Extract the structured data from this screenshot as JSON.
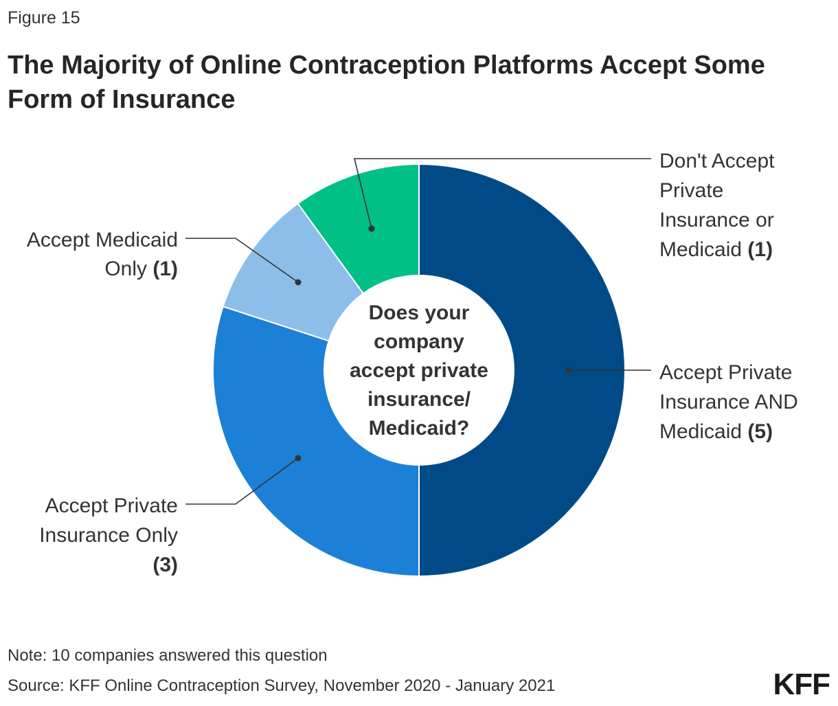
{
  "figure_label": "Figure 15",
  "title": "The Majority of Online Contraception Platforms Accept Some Form of Insurance",
  "note": "Note: 10 companies answered this question",
  "source": "Source: KFF Online Contraception Survey, November 2020 - January 2021",
  "logo": "KFF",
  "chart_data": {
    "type": "pie",
    "subtype": "donut",
    "center_label": [
      "Does your",
      "company",
      "accept private",
      "insurance/",
      "Medicaid?"
    ],
    "slices": [
      {
        "label_lines": [
          "Accept Private",
          "Insurance AND",
          "Medicaid"
        ],
        "value": 5,
        "value_label": "(5)",
        "color": "#004B87"
      },
      {
        "label_lines": [
          "Accept Private",
          "Insurance Only"
        ],
        "value": 3,
        "value_label": "(3)",
        "color": "#1C80D6"
      },
      {
        "label_lines": [
          "Accept Medicaid",
          "Only"
        ],
        "value": 1,
        "value_label": "(1)",
        "color": "#8DBEE9"
      },
      {
        "label_lines": [
          "Don't Accept",
          "Private",
          "Insurance or",
          "Medicaid"
        ],
        "value": 1,
        "value_label": "(1)",
        "color": "#00BF87"
      }
    ]
  }
}
